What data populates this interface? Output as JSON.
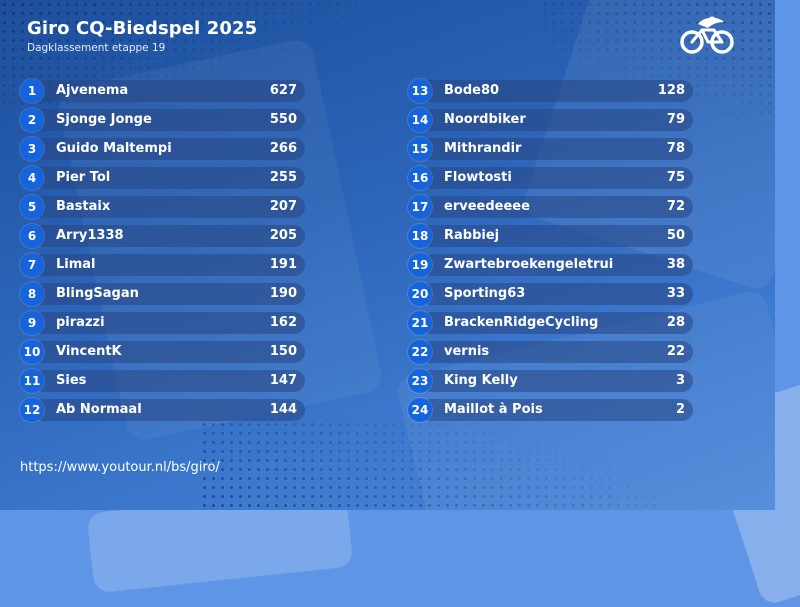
{
  "header": {
    "title": "Giro CQ-Biedspel 2025",
    "subtitle": "Dagklassement etappe 19"
  },
  "logo_icon": "cycling-logo-icon",
  "left_ranking": [
    {
      "rank": "1",
      "name": "Ajvenema",
      "score": "627"
    },
    {
      "rank": "2",
      "name": "Sjonge Jonge",
      "score": "550"
    },
    {
      "rank": "3",
      "name": "Guido Maltempi",
      "score": "266"
    },
    {
      "rank": "4",
      "name": "Pier Tol",
      "score": "255"
    },
    {
      "rank": "5",
      "name": "Bastaix",
      "score": "207"
    },
    {
      "rank": "6",
      "name": "Arry1338",
      "score": "205"
    },
    {
      "rank": "7",
      "name": "Limal",
      "score": "191"
    },
    {
      "rank": "8",
      "name": "BlingSagan",
      "score": "190"
    },
    {
      "rank": "9",
      "name": "pirazzi",
      "score": "162"
    },
    {
      "rank": "10",
      "name": "VincentK",
      "score": "150"
    },
    {
      "rank": "11",
      "name": "Sies",
      "score": "147"
    },
    {
      "rank": "12",
      "name": "Ab Normaal",
      "score": "144"
    }
  ],
  "right_ranking": [
    {
      "rank": "13",
      "name": "Bode80",
      "score": "128"
    },
    {
      "rank": "14",
      "name": "Noordbiker",
      "score": "79"
    },
    {
      "rank": "15",
      "name": "Mithrandir",
      "score": "78"
    },
    {
      "rank": "16",
      "name": "Flowtosti",
      "score": "75"
    },
    {
      "rank": "17",
      "name": "erveedeeee",
      "score": "72"
    },
    {
      "rank": "18",
      "name": "Rabbiej",
      "score": "50"
    },
    {
      "rank": "19",
      "name": "Zwartebroekengeletrui",
      "score": "38"
    },
    {
      "rank": "20",
      "name": "Sporting63",
      "score": "33"
    },
    {
      "rank": "21",
      "name": "BrackenRidgeCycling",
      "score": "28"
    },
    {
      "rank": "22",
      "name": "vernis",
      "score": "22"
    },
    {
      "rank": "23",
      "name": "King Kelly",
      "score": "3"
    },
    {
      "rank": "24",
      "name": "Maillot à Pois",
      "score": "2"
    }
  ],
  "footer": {
    "url": "https://www.youtour.nl/bs/giro/"
  },
  "colors": {
    "rank_badge": "#1563dd",
    "card_background": "#2a62b5",
    "page_background": "#5f95e6"
  }
}
